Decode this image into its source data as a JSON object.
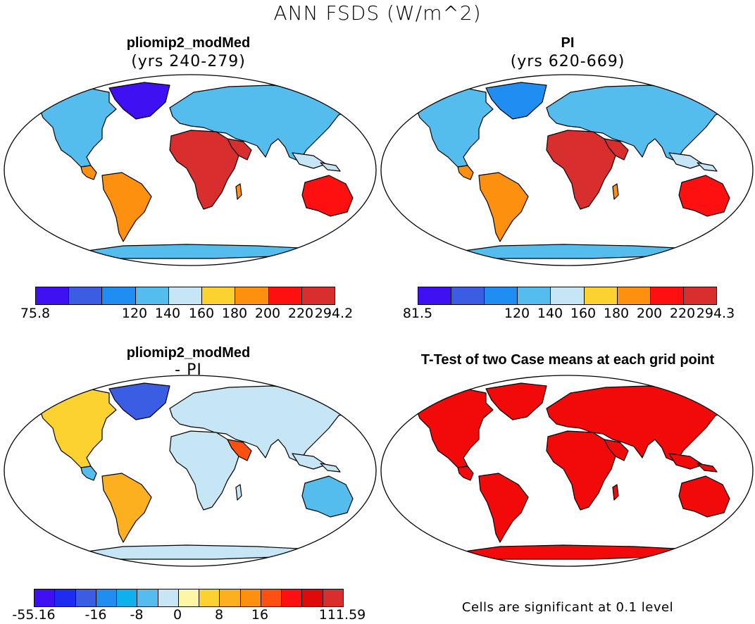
{
  "figure": {
    "title": "ANN FSDS (W/m^2)"
  },
  "panels": {
    "top_left": {
      "title": "pliomip2_modMed",
      "subtitle": "(yrs 240-279)"
    },
    "top_right": {
      "title": "PI",
      "subtitle": "(yrs 620-669)"
    },
    "bottom_left": {
      "title": "pliomip2_modMed",
      "subtitle": "- PI"
    },
    "bottom_right": {
      "title": "T-Test of two Case means at each grid point",
      "note": "Cells are significant at 0.1 level"
    }
  },
  "colorbars": {
    "top_left": {
      "colors": [
        "#3e10f2",
        "#3a5de3",
        "#1f8df2",
        "#55bdee",
        "#c6e6f6",
        "#fcd230",
        "#fe9010",
        "#fe1010",
        "#d92e2e"
      ],
      "labels": [
        "75.8",
        "120",
        "140",
        "160",
        "180",
        "200",
        "220",
        "294.2"
      ]
    },
    "top_right": {
      "colors": [
        "#3e10f2",
        "#3a5de3",
        "#1f8df2",
        "#55bdee",
        "#c6e6f6",
        "#fcd230",
        "#fe9010",
        "#fe1010",
        "#d92e2e"
      ],
      "labels": [
        "81.5",
        "120",
        "140",
        "160",
        "180",
        "200",
        "220",
        "294.3"
      ]
    },
    "bottom_left": {
      "colors": [
        "#3e10f2",
        "#1e2cf0",
        "#3a5de3",
        "#1f8df2",
        "#0fb0ee",
        "#55bdee",
        "#c6e6f6",
        "#fef6a6",
        "#fcd230",
        "#fcb020",
        "#fe9010",
        "#fe5010",
        "#fe1010",
        "#e00a0a",
        "#d92e2e"
      ],
      "labels": [
        "-55.16",
        "-16",
        "-8",
        "0",
        "8",
        "16",
        "111.59"
      ]
    }
  },
  "legend_colors": {
    "significant": "#f20a0a",
    "ocean": "#ffffff",
    "coast": "#000000"
  }
}
